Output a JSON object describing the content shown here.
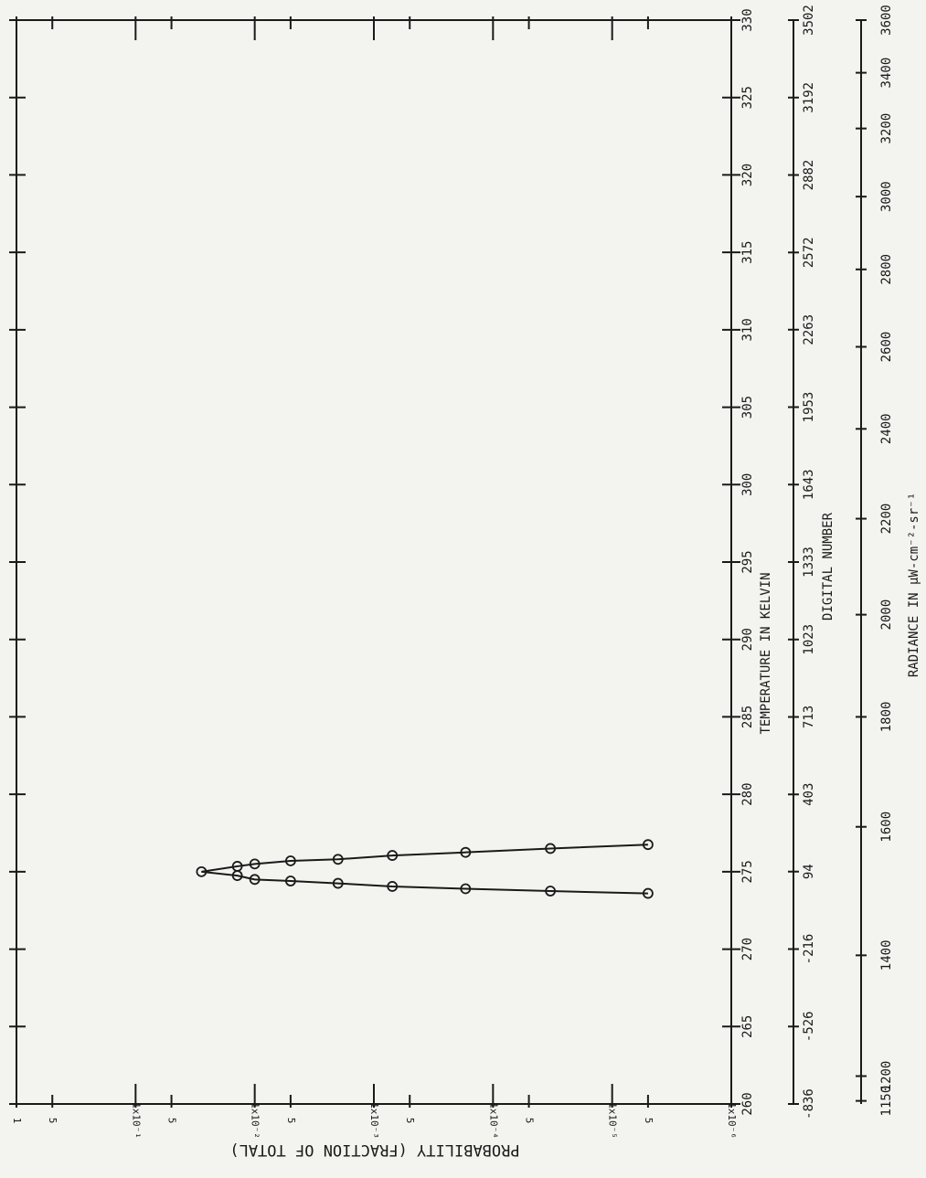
{
  "chart_data": {
    "type": "line",
    "color": "#1a1a1a",
    "x_label": "TEMPERATURE IN KELVIN",
    "y_label": "PROBABILITY (FRACTION OF TOTAL)",
    "x": [
      273.6,
      273.75,
      273.9,
      274.05,
      274.25,
      274.4,
      274.5,
      274.75,
      275.0,
      275.35,
      275.5,
      275.7,
      275.8,
      276.05,
      276.25,
      276.5,
      276.75
    ],
    "values": [
      5e-06,
      3.3e-05,
      0.00017,
      0.0007,
      0.002,
      0.005,
      0.01,
      0.014,
      0.028,
      0.014,
      0.01,
      0.005,
      0.002,
      0.0007,
      0.00017,
      3.3e-05,
      5e-06
    ],
    "xlim": [
      260,
      330
    ],
    "xticks": [
      260,
      265,
      270,
      275,
      280,
      285,
      290,
      295,
      300,
      305,
      310,
      315,
      320,
      325,
      330
    ],
    "ylim": [
      1,
      1e-06
    ],
    "ylog": true,
    "yticks": [
      1,
      {
        "value": 0.5,
        "label": "5"
      },
      {
        "value": 0.1,
        "label": "1x10⁻¹"
      },
      {
        "value": 0.05,
        "label": "5"
      },
      {
        "value": 0.01,
        "label": "1x10⁻²"
      },
      {
        "value": 0.005,
        "label": "5"
      },
      {
        "value": 0.001,
        "label": "1x10⁻³"
      },
      {
        "value": 0.0005,
        "label": "5"
      },
      {
        "value": 0.0001,
        "label": "1x10⁻⁴"
      },
      {
        "value": 5e-05,
        "label": "5"
      },
      {
        "value": 1e-05,
        "label": "1x10⁻⁵"
      },
      {
        "value": 5e-06,
        "label": "5"
      },
      {
        "value": 1e-06,
        "label": "1x10⁻⁶"
      }
    ],
    "x2_label": "DIGITAL NUMBER",
    "x2lim": [
      -836,
      3502
    ],
    "x2ticks": [
      -836,
      -526,
      -216,
      94,
      403,
      713,
      1023,
      1333,
      1643,
      1953,
      2263,
      2572,
      2882,
      3192,
      3502
    ],
    "x3_label": "RADIANCE IN μW-cm⁻²-sr⁻¹",
    "x3ticks": [
      1150,
      1200,
      1400,
      1600,
      1800,
      2000,
      2200,
      2400,
      2600,
      2800,
      3000,
      3200,
      3400,
      3600
    ],
    "x3tick_temperatures": [
      260.2,
      261.8,
      269.6,
      277.9,
      285.0,
      291.6,
      297.8,
      303.6,
      308.9,
      313.9,
      318.6,
      323.0,
      326.6,
      330.0
    ]
  }
}
